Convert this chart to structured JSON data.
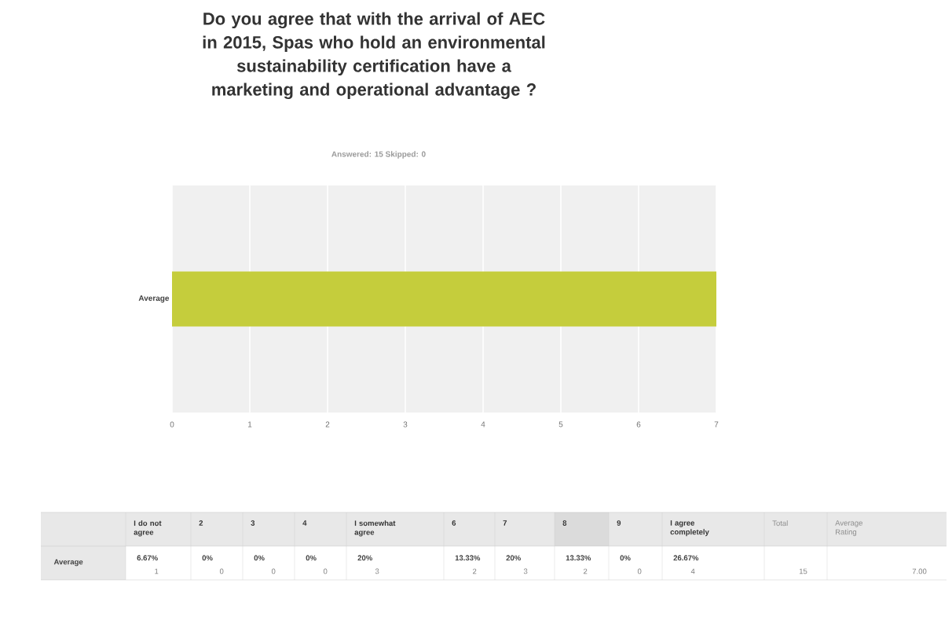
{
  "chart_data": {
    "type": "bar",
    "orientation": "horizontal",
    "title": "Do you agree that with the arrival of AEC in 2015, Spas who hold an environmental sustainability certification have a marketing and operational advantage ?",
    "subtitle": "Answered: 15   Skipped: 0",
    "categories": [
      "Average"
    ],
    "values": [
      7.0
    ],
    "color": "#c5cd3c",
    "xlim": [
      0,
      7
    ],
    "xticks": [
      0,
      1,
      2,
      3,
      4,
      5,
      6,
      7
    ],
    "grid": "x",
    "annotations": [
      "I do not agree",
      "2",
      "3",
      "4",
      "I somewhat agree",
      "6",
      "7",
      "8",
      "9",
      "I agree completely",
      "Total",
      "Average Rating",
      "Average",
      "6.67%",
      "1",
      "0%",
      "0",
      "0%",
      "0",
      "0%",
      "0",
      "20%",
      "3",
      "13.33%",
      "2",
      "20%",
      "3",
      "13.33%",
      "2",
      "0%",
      "0",
      "26.67%",
      "4",
      "15",
      "7.00"
    ]
  }
}
